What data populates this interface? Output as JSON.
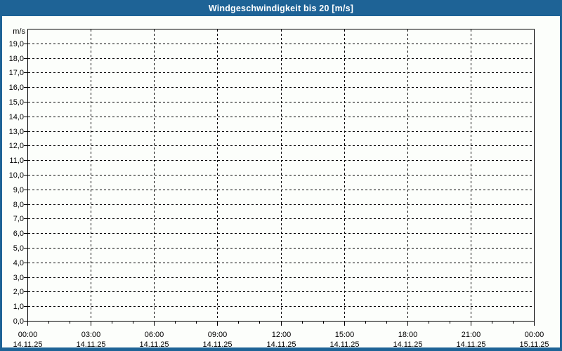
{
  "window": {
    "title": "Windgeschwindigkeit bis 20 [m/s]"
  },
  "colors": {
    "titlebar_bg": "#1E6396",
    "frame_border": "#1E6396",
    "content_bg": "#FCFEFB",
    "plot_bg": "#FCFEFB",
    "grid_color": "#000000",
    "axis_color": "#000000",
    "text_color": "#000000",
    "title_text_color": "#FFFFFF"
  },
  "chart_data": {
    "type": "line",
    "title": "Windgeschwindigkeit bis 20 [m/s]",
    "xlabel": "",
    "ylabel": "",
    "y_axis": {
      "unit_label": "m/s",
      "min": 0,
      "max": 20,
      "tick_step": 1.0,
      "tick_labels": [
        "0,0",
        "1,0",
        "2,0",
        "3,0",
        "4,0",
        "5,0",
        "6,0",
        "7,0",
        "8,0",
        "9,0",
        "10,0",
        "11,0",
        "12,0",
        "13,0",
        "14,0",
        "15,0",
        "16,0",
        "17,0",
        "18,0",
        "19,0"
      ]
    },
    "x_axis": {
      "start_hour": 0,
      "end_hour": 24,
      "minor_tick_every_hours": 1,
      "major_tick_every_hours": 3,
      "major_ticks": [
        {
          "hour": 0,
          "time": "00:00",
          "date": "14.11.25"
        },
        {
          "hour": 3,
          "time": "03:00",
          "date": "14.11.25"
        },
        {
          "hour": 6,
          "time": "06:00",
          "date": "14.11.25"
        },
        {
          "hour": 9,
          "time": "09:00",
          "date": "14.11.25"
        },
        {
          "hour": 12,
          "time": "12:00",
          "date": "14.11.25"
        },
        {
          "hour": 15,
          "time": "15:00",
          "date": "14.11.25"
        },
        {
          "hour": 18,
          "time": "18:00",
          "date": "14.11.25"
        },
        {
          "hour": 21,
          "time": "21:00",
          "date": "14.11.25"
        },
        {
          "hour": 24,
          "time": "00:00",
          "date": "15.11.25"
        }
      ]
    },
    "grid": {
      "horizontal": "dashed",
      "vertical": "dashed"
    },
    "legend": null,
    "series": []
  }
}
